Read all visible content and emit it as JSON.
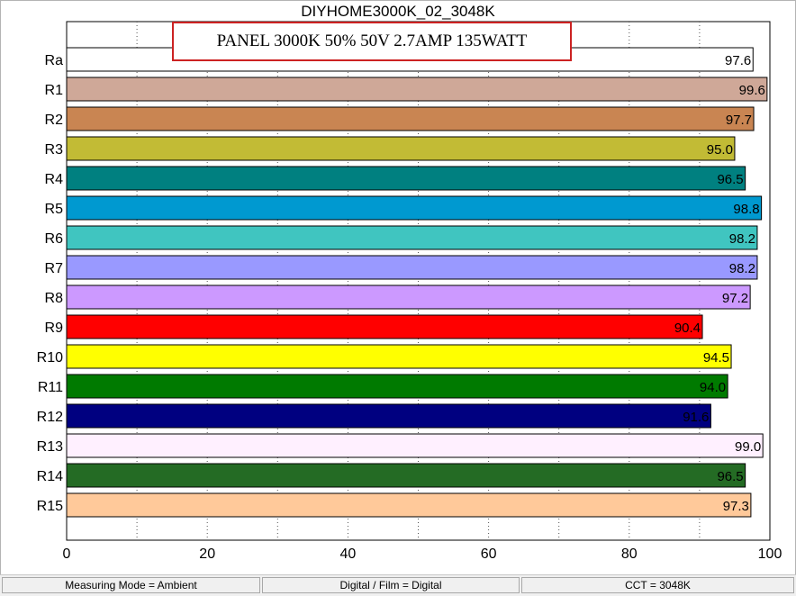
{
  "chart_data": {
    "type": "bar",
    "orientation": "horizontal",
    "title": "DIYHOME3000K_02_3048K",
    "annotation": "PANEL 3000K 50% 50V 2.7AMP  135WATT",
    "categories": [
      "Ra",
      "R1",
      "R2",
      "R3",
      "R4",
      "R5",
      "R6",
      "R7",
      "R8",
      "R9",
      "R10",
      "R11",
      "R12",
      "R13",
      "R14",
      "R15"
    ],
    "values": [
      97.6,
      99.6,
      97.7,
      95.0,
      96.5,
      98.8,
      98.2,
      98.2,
      97.2,
      90.4,
      94.5,
      94.0,
      91.6,
      99.0,
      96.5,
      97.3
    ],
    "value_labels": [
      "97.6",
      "99.6",
      "97.7",
      "95.0",
      "96.5",
      "98.8",
      "98.2",
      "98.2",
      "97.2",
      "90.4",
      "94.5",
      "94.0",
      "91.6",
      "99.0",
      "96.5",
      "97.3"
    ],
    "colors": [
      "#ffffff",
      "#cfa898",
      "#c98552",
      "#c2bb35",
      "#008080",
      "#0099d0",
      "#40c5c0",
      "#9999ff",
      "#cc99ff",
      "#ff0000",
      "#ffff00",
      "#007a00",
      "#000080",
      "#fff0ff",
      "#246b24",
      "#ffc99a"
    ],
    "xlim": [
      0,
      100
    ],
    "xticks": [
      0,
      20,
      40,
      60,
      80,
      100
    ],
    "xtick_labels": [
      "0",
      "20",
      "40",
      "60",
      "80",
      "100"
    ],
    "grid": "vertical dotted every 10",
    "legend": "none"
  },
  "status_bar": {
    "measuring_mode": "Measuring Mode = Ambient",
    "film": "Digital / Film = Digital",
    "cct": "CCT = 3048K"
  }
}
